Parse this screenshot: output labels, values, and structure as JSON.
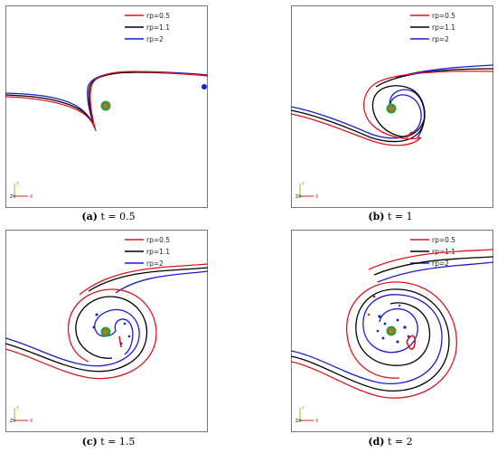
{
  "figure": {
    "legend": [
      {
        "label": "rp=0.5",
        "color": "#e0141e"
      },
      {
        "label": "rp=1.1",
        "color": "#000000"
      },
      {
        "label": "rp=2",
        "color": "#1a1ad0"
      }
    ],
    "axis_labels": {
      "y": "Y",
      "z": "Z",
      "x": "X"
    },
    "panels": [
      {
        "id": "a",
        "caption_letter": "(a)",
        "caption_text": " t = 0.5"
      },
      {
        "id": "b",
        "caption_letter": "(b)",
        "caption_text": " t = 1"
      },
      {
        "id": "c",
        "caption_letter": "(c)",
        "caption_text": " t = 1.5"
      },
      {
        "id": "d",
        "caption_letter": "(d)",
        "caption_text": " t = 2"
      }
    ],
    "colors": {
      "frame": "#7a7a7a",
      "particle_outer": "#2e9e3a",
      "particle_inner": "#e8601c"
    }
  }
}
